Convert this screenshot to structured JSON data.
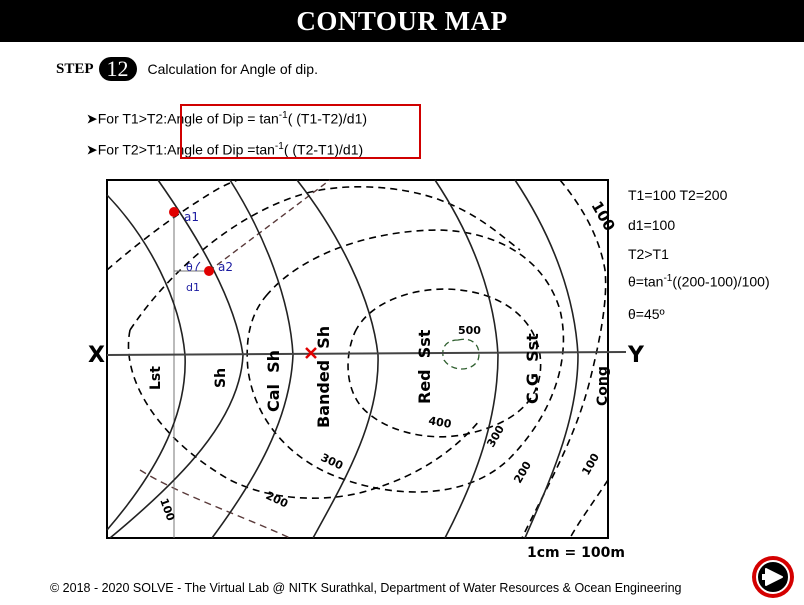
{
  "header": {
    "title": "CONTOUR MAP"
  },
  "step": {
    "label": "STEP",
    "number": "12",
    "description": "Calculation for Angle of dip."
  },
  "rules": [
    {
      "prefix": "➤For T1>T2:",
      "formula_pre": "Angle of Dip = tan",
      "sup": "-1",
      "formula_post": "( (T1-T2)/d1)"
    },
    {
      "prefix": "➤For T2>T1:",
      "formula_pre": "Angle of Dip =tan",
      "sup": "-1",
      "formula_post": "( (T2-T1)/d1)"
    }
  ],
  "calc": {
    "line1": "T1=100  T2=200",
    "line2": "d1=100",
    "line3": "T2>T1",
    "line4_pre": "θ=tan",
    "line4_sup": "-1",
    "line4_post": "((200-100)/100)",
    "line5": "θ=45º"
  },
  "map": {
    "x_label": "X",
    "y_label": "Y",
    "points": {
      "a1": "a1",
      "a2": "a2",
      "theta": "θ",
      "d1": "d1"
    },
    "formations": [
      "Lst",
      "Sh",
      "Cal  Sh",
      "Banded  Sh",
      "Red  Sst",
      "C.G  Sst",
      "Cong"
    ],
    "contours": {
      "c500": "500",
      "c400": "400",
      "c300a": "300",
      "c300b": "300",
      "c200a": "200",
      "c200b": "200",
      "c100a": "100",
      "c100b": "100",
      "c100c": "100"
    },
    "scale": "1cm = 100m"
  },
  "footer": {
    "text": "© 2018 - 2020 SOLVE - The Virtual Lab @ NITK Surathkal, Department of Water Resources & Ocean Engineering"
  },
  "colors": {
    "marker": "#e00000",
    "box": "#d00000",
    "label_blue": "#1a1aa0",
    "dashed_brown": "#5a3a3a",
    "inner_green": "#2f5f2f"
  },
  "nav": {
    "next_icon": "next-arrow-icon"
  }
}
